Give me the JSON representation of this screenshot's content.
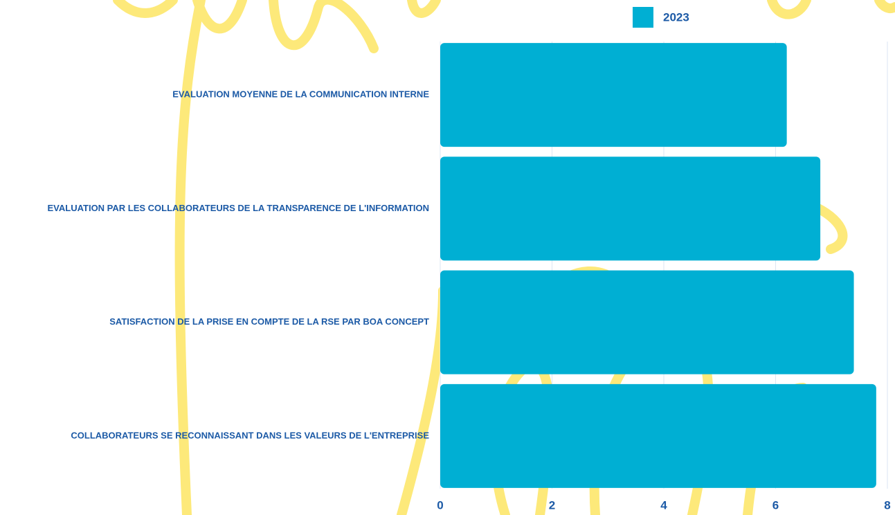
{
  "chart_data": {
    "type": "hbar",
    "categories": [
      "Evaluation moyenne de la communication interne",
      "Evaluation par les collaborateurs de la transparence de l'information",
      "Satisfaction de la prise en compte de la RSE par BOA Concept",
      "Collaborateurs se reconnaissant dans les valeurs de l'entreprise"
    ],
    "series": [
      {
        "name": "2023",
        "color": "#00afd3",
        "values": [
          6.2,
          6.8,
          7.4,
          7.8
        ]
      }
    ],
    "xlim": [
      0,
      8
    ],
    "xticks": [
      0,
      2,
      4,
      6,
      8
    ],
    "grid": true,
    "legend": "top"
  }
}
